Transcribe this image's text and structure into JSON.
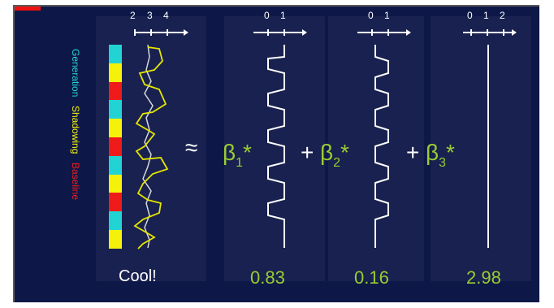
{
  "legend": {
    "label_generation": "Generation",
    "label_shadowing": "Shadowing",
    "label_baseline": "Baseline",
    "colors": {
      "generation": "#22d3d3",
      "shadowing": "#f5f20a",
      "baseline": "#ef1b1b"
    }
  },
  "axes": [
    {
      "ticks": [
        "2",
        "3",
        "4"
      ]
    },
    {
      "ticks": [
        "0",
        "1"
      ]
    },
    {
      "ticks": [
        "0",
        "1"
      ]
    },
    {
      "ticks": [
        "0",
        "1",
        "2"
      ]
    }
  ],
  "equation": {
    "approx": "≈",
    "beta1": "β",
    "beta1_sub": "1",
    "beta2": "β",
    "beta2_sub": "2",
    "beta3": "β",
    "beta3_sub": "3",
    "star": "*",
    "plus": "+"
  },
  "values": {
    "cool": "Cool!",
    "b1": "0.83",
    "b2": "0.16",
    "b3": "2.98"
  }
}
